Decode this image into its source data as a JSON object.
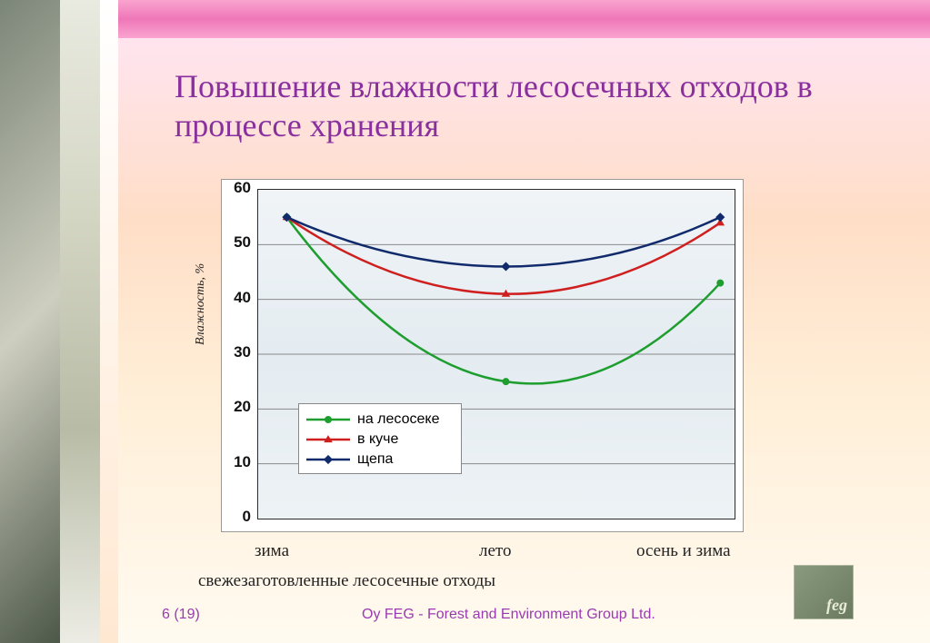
{
  "slide": {
    "title": "Повышение влажности лесосечных отходов в процессе хранения",
    "page_label": "6 (19)",
    "footer": "Oy FEG - Forest and Environment Group Ltd.",
    "logo_text": "feg",
    "title_color": "#8a2f9e",
    "title_fontsize": 36
  },
  "chart": {
    "type": "line",
    "y_axis_label": "Влажность, %",
    "ylim": [
      0,
      60
    ],
    "ytick_step": 10,
    "yticks": [
      0,
      10,
      20,
      30,
      40,
      50,
      60
    ],
    "x_categories": [
      "зима",
      "лето",
      "осень и зима"
    ],
    "caption": "свежезаготовленные лесосечные отходы",
    "plot_bg_top": "#f0f4f7",
    "plot_bg_bottom": "#e4ecf1",
    "grid_color": "#8a8a8a",
    "border_color": "#2b2b2b",
    "line_width": 2.5,
    "marker_size": 7,
    "series": [
      {
        "key": "lesoseka",
        "label": "на лесосеке",
        "color": "#1e9e2f",
        "marker": "circle",
        "values": [
          55,
          25,
          43
        ]
      },
      {
        "key": "kucha",
        "label": "в куче",
        "color": "#cf1f1f",
        "marker": "triangle",
        "values": [
          55,
          41,
          54
        ]
      },
      {
        "key": "shchepa",
        "label": "щепа",
        "color": "#102a6b",
        "marker": "diamond",
        "values": [
          55,
          46,
          55
        ]
      }
    ],
    "x_positions": [
      0.06,
      0.52,
      0.97
    ]
  }
}
